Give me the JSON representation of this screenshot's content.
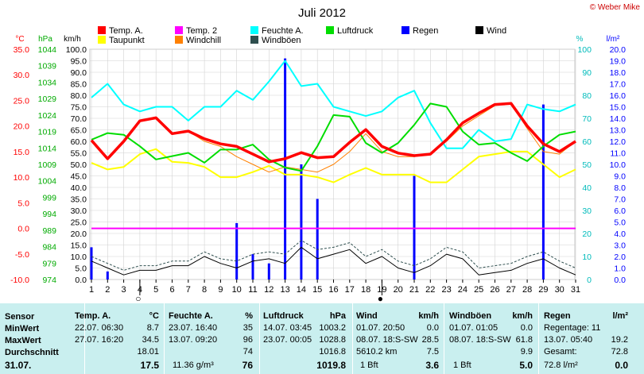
{
  "title": "Juli 2012",
  "credit": "© Weber Mike",
  "colors": {
    "temp_a": "#ff0000",
    "temp_2": "#ff00ff",
    "feuchte_a": "#00ffff",
    "luftdruck": "#00dd00",
    "regen": "#0000ff",
    "wind": "#000000",
    "taupunkt": "#ffff00",
    "windchill": "#ff8000",
    "windboeen": "#2f4f4f"
  },
  "legend": [
    {
      "label": "Temp. A.",
      "color": "#ff0000"
    },
    {
      "label": "Temp. 2",
      "color": "#ff00ff"
    },
    {
      "label": "Feuchte A.",
      "color": "#00ffff"
    },
    {
      "label": "Luftdruck",
      "color": "#00dd00"
    },
    {
      "label": "Regen",
      "color": "#0000ff"
    },
    {
      "label": "Wind",
      "color": "#000000"
    },
    {
      "label": "Taupunkt",
      "color": "#ffff00"
    },
    {
      "label": "Windchill",
      "color": "#ff8000"
    },
    {
      "label": "Windböen",
      "color": "#2f4f4f"
    }
  ],
  "axis_headers": {
    "temp": "°C",
    "pressure": "hPa",
    "wind": "km/h",
    "humidity": "%",
    "rain": "l/m²"
  },
  "axes": {
    "temp_ticks": [
      "35.0",
      "30.0",
      "25.0",
      "20.0",
      "15.0",
      "10.0",
      "5.0",
      "0.0",
      "-5.0",
      "-10.0"
    ],
    "pressure_ticks": [
      "1044",
      "1039",
      "1034",
      "1029",
      "1024",
      "1019",
      "1014",
      "1009",
      "1004",
      "999",
      "994",
      "989",
      "984",
      "979",
      "974"
    ],
    "wind_ticks": [
      "100.0",
      "95.0",
      "90.0",
      "85.0",
      "80.0",
      "75.0",
      "70.0",
      "65.0",
      "60.0",
      "55.0",
      "50.0",
      "45.0",
      "40.0",
      "35.0",
      "30.0",
      "25.0",
      "20.0",
      "15.0",
      "10.0",
      "5.0",
      "0.0"
    ],
    "humidity_ticks": [
      "100",
      "90",
      "80",
      "70",
      "60",
      "50",
      "40",
      "30",
      "20",
      "10",
      "0"
    ],
    "rain_ticks": [
      "20.0",
      "19.0",
      "18.0",
      "17.0",
      "16.0",
      "15.0",
      "14.0",
      "13.0",
      "12.0",
      "11.0",
      "10.0",
      "9.0",
      "8.0",
      "7.0",
      "6.0",
      "5.0",
      "4.0",
      "3.0",
      "2.0",
      "1.0",
      "0.0"
    ],
    "x_ticks": [
      "1",
      "2",
      "3",
      "4",
      "5",
      "6",
      "7",
      "8",
      "9",
      "10",
      "11",
      "12",
      "13",
      "14",
      "15",
      "16",
      "17",
      "18",
      "19",
      "20",
      "21",
      "22",
      "23",
      "24",
      "25",
      "26",
      "27",
      "28",
      "29",
      "30",
      "31"
    ]
  },
  "chart_data": {
    "type": "line",
    "title": "Juli 2012",
    "x": [
      1,
      2,
      3,
      4,
      5,
      6,
      7,
      8,
      9,
      10,
      11,
      12,
      13,
      14,
      15,
      16,
      17,
      18,
      19,
      20,
      21,
      22,
      23,
      24,
      25,
      26,
      27,
      28,
      29,
      30,
      31
    ],
    "series": [
      {
        "name": "Temp. A.",
        "unit": "°C",
        "values": [
          17.2,
          13.6,
          17.0,
          21.0,
          21.6,
          18.5,
          19.0,
          17.5,
          16.5,
          16.0,
          14.5,
          13.0,
          13.6,
          14.8,
          13.8,
          14.0,
          16.8,
          19.3,
          16.0,
          14.7,
          14.2,
          14.5,
          17.3,
          20.6,
          22.5,
          24.2,
          24.4,
          20.0,
          16.5,
          15.0,
          17.0
        ]
      },
      {
        "name": "Temp. 2",
        "unit": "°C",
        "values": [
          0.0,
          0.0,
          0.0,
          0.0,
          0.0,
          0.0,
          0.0,
          0.0,
          0.0,
          0.0,
          0.0,
          0.0,
          0.0,
          0.0,
          0.0,
          0.0,
          0.0,
          0.0,
          0.0,
          0.0,
          0.0,
          0.0,
          0.0,
          0.0,
          0.0,
          0.0,
          0.0,
          0.0,
          0.0,
          0.0,
          0.0
        ]
      },
      {
        "name": "Feuchte A.",
        "unit": "%",
        "values": [
          79,
          85,
          76,
          73,
          75,
          75,
          69,
          75,
          75,
          82,
          78,
          86,
          95,
          84,
          85,
          75,
          73,
          71,
          73,
          79,
          82,
          68,
          57,
          57,
          65,
          60,
          61,
          76,
          74,
          73,
          76
        ]
      },
      {
        "name": "Luftdruck",
        "unit": "hPa",
        "values": [
          1016.5,
          1018.5,
          1018.0,
          1014.5,
          1010.5,
          1011.5,
          1012.5,
          1009.5,
          1013.5,
          1013.5,
          1015.0,
          1010.5,
          1008.0,
          1007.0,
          1014.5,
          1024.0,
          1023.5,
          1015.5,
          1012.5,
          1015.5,
          1021.0,
          1027.5,
          1026.5,
          1019.0,
          1015.0,
          1015.5,
          1012.5,
          1010.0,
          1014.5,
          1018.0,
          1019.0
        ]
      },
      {
        "name": "Taupunkt",
        "unit": "°C",
        "values": [
          12.8,
          11.5,
          12.0,
          14.5,
          15.5,
          13.0,
          12.8,
          12.0,
          10.0,
          10.0,
          11.0,
          12.2,
          10.5,
          10.5,
          10.0,
          9.0,
          10.5,
          11.8,
          10.5,
          10.5,
          10.5,
          9.0,
          9.0,
          11.5,
          14.0,
          14.5,
          15.0,
          15.0,
          12.5,
          10.0,
          11.5
        ]
      },
      {
        "name": "Windchill",
        "unit": "°C",
        "values": [
          17.2,
          13.6,
          17.0,
          21.0,
          21.6,
          18.5,
          19.0,
          17.0,
          16.0,
          14.0,
          12.5,
          11.0,
          12.0,
          11.5,
          11.0,
          12.5,
          15.0,
          18.5,
          15.0,
          14.0,
          14.0,
          14.5,
          17.0,
          20.0,
          22.0,
          24.0,
          24.4,
          19.5,
          15.0,
          14.5,
          17.0
        ]
      },
      {
        "name": "Wind",
        "unit": "km/h",
        "values": [
          8,
          5,
          2,
          4,
          4,
          6,
          6,
          10,
          7,
          5,
          8,
          9,
          7,
          14,
          9,
          11,
          13,
          7,
          10,
          5,
          3,
          6,
          11,
          9,
          2,
          3,
          4,
          7,
          9,
          5,
          2
        ]
      },
      {
        "name": "Windböen",
        "unit": "km/h",
        "values": [
          10,
          7,
          4,
          6,
          6,
          8,
          8,
          12,
          9,
          8,
          11,
          12,
          11,
          17,
          13,
          14,
          16,
          10,
          13,
          8,
          6,
          9,
          14,
          12,
          5,
          6,
          7,
          10,
          12,
          8,
          5
        ]
      },
      {
        "name": "Regen",
        "unit": "l/m²",
        "type": "bar",
        "x": [
          1,
          2,
          10,
          11,
          12,
          13,
          14,
          15,
          21,
          29
        ],
        "values": [
          2.8,
          0.7,
          4.9,
          2.2,
          1.4,
          19.2,
          10.0,
          7.0,
          9.0,
          15.2
        ]
      }
    ],
    "moon_phase_markers": [
      {
        "x": 4,
        "symbol": "○"
      },
      {
        "x": 19,
        "symbol": "●"
      }
    ],
    "ylim_temp": [
      -10,
      35
    ],
    "ylim_pressure": [
      974,
      1044
    ],
    "ylim_wind": [
      0,
      100
    ],
    "ylim_humidity": [
      0,
      100
    ],
    "ylim_rain": [
      0,
      20
    ],
    "grid": true
  },
  "stats": {
    "row_labels": {
      "sensor": "Sensor",
      "min": "MinWert",
      "max": "MaxWert",
      "avg": "Durchschnitt",
      "date": "31.07."
    },
    "temp": {
      "head": "Temp. A.",
      "unit": "°C",
      "min_time": "22.07.  06:30",
      "min": "8.7",
      "max_time": "27.07.  16:20",
      "max": "34.5",
      "avg": "18.01",
      "current": "17.5"
    },
    "humidity": {
      "head": "Feuchte A.",
      "unit": "%",
      "min_time": "23.07.  16:40",
      "min": "35",
      "max_time": "13.07.  09:20",
      "max": "96",
      "avg": "74",
      "abs": "11.36 g/m³",
      "current": "76"
    },
    "pressure": {
      "head": "Luftdruck",
      "unit": "hPa",
      "min_time": "14.07.  03:45",
      "min": "1003.2",
      "max_time": "23.07.  00:05",
      "max": "1028.8",
      "avg": "1016.8",
      "current": "1019.8"
    },
    "wind": {
      "head": "Wind",
      "unit": "km/h",
      "min_time": "01.07.  20:50",
      "min": "0.0",
      "max_time": "08.07.  18:S-SW",
      "max": "28.5",
      "dist": "5610.2 km",
      "avg": "7.5",
      "bft": "1 Bft",
      "current": "3.6"
    },
    "gust": {
      "head": "Windböen",
      "unit": "km/h",
      "min_time": "01.07.  01:05",
      "min": "0.0",
      "max_time": "08.07.  18:S-SW",
      "max": "61.8",
      "avg": "9.9",
      "bft": "1 Bft",
      "current": "5.0"
    },
    "rain": {
      "head": "Regen",
      "unit": "l/m²",
      "days": "Regentage: 11",
      "max_time": "13.07.  05:40",
      "max": "19.2",
      "total_label": "Gesamt:",
      "total": "72.8",
      "monthly": "72.8 l/m²",
      "current": "0.0"
    }
  }
}
